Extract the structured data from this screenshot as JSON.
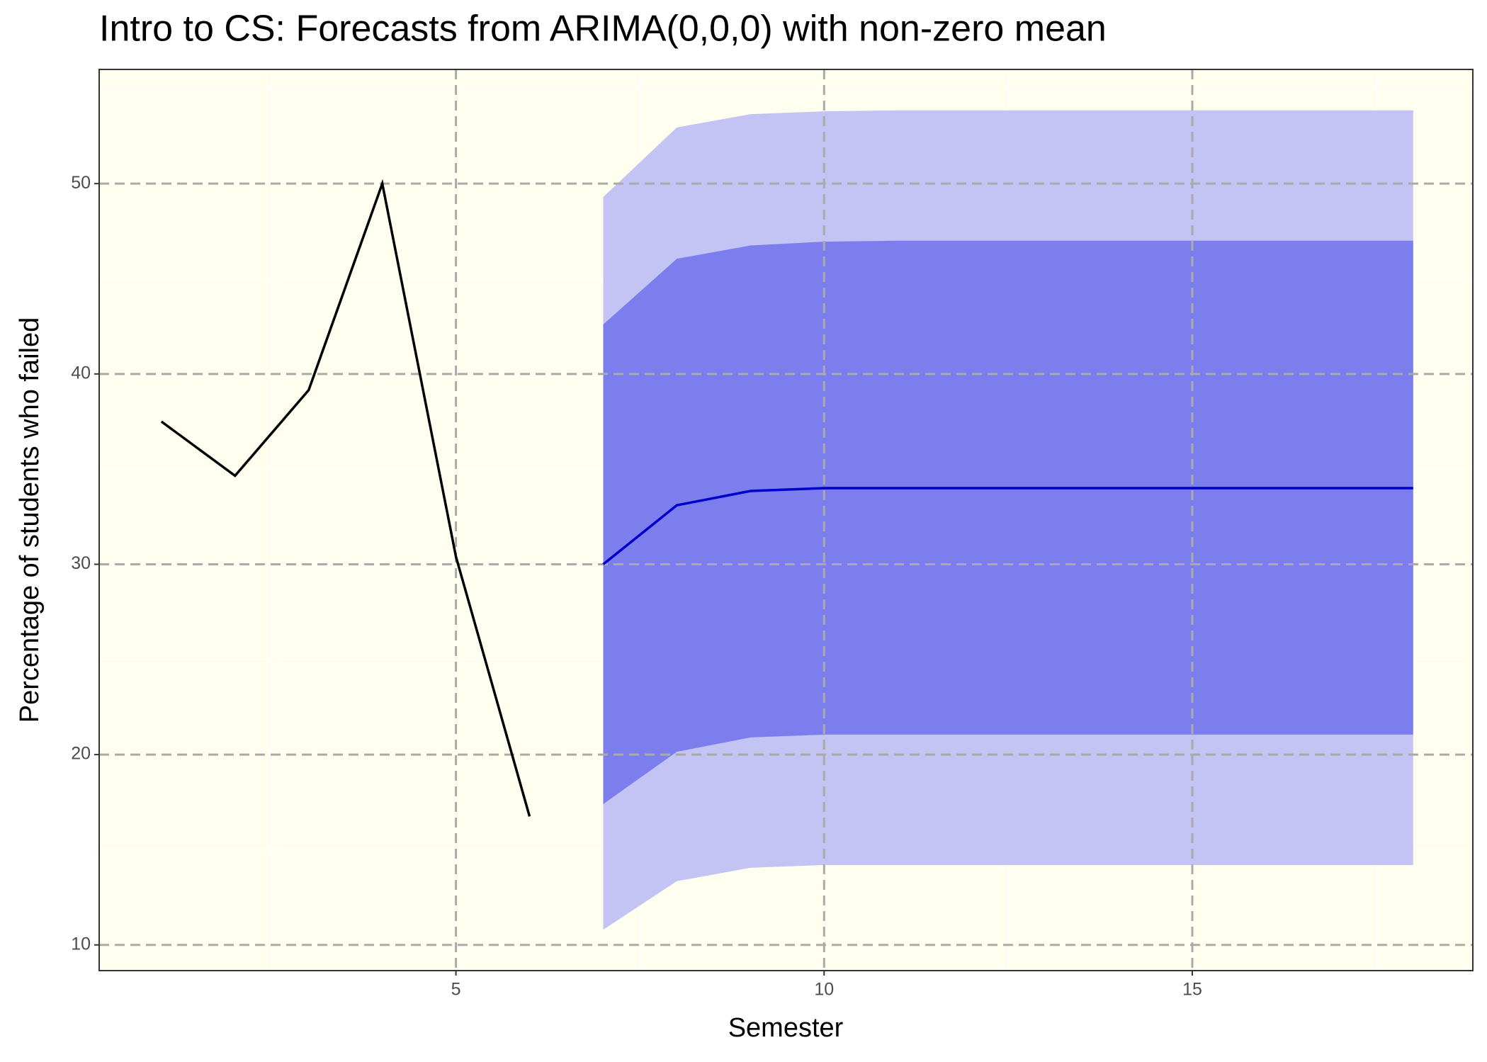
{
  "chart_data": {
    "type": "forecast",
    "title": "Intro to CS: Forecasts from ARIMA(0,0,0) with non-zero mean",
    "x_label": "Semester",
    "y_label": "Percentage of students who failed",
    "x": [
      1,
      2,
      3,
      4,
      5,
      6
    ],
    "values": [
      37.5,
      34.65,
      39.15,
      50,
      30.4,
      16.75
    ],
    "color": "#000000",
    "forecast": {
      "x": [
        7,
        8,
        9,
        10,
        11,
        12,
        13,
        14,
        15,
        16,
        17,
        18
      ],
      "mean": [
        30.0,
        33.1,
        33.85,
        34.0,
        34.0,
        34.0,
        34.0,
        34.0,
        34.0,
        34.0,
        34.0,
        34.0
      ],
      "lo80": [
        17.4,
        20.15,
        20.9,
        21.05,
        21.05,
        21.05,
        21.05,
        21.05,
        21.05,
        21.05,
        21.05,
        21.05
      ],
      "hi80": [
        42.6,
        46.05,
        46.75,
        46.95,
        47.0,
        47.0,
        47.0,
        47.0,
        47.0,
        47.0,
        47.0,
        47.0
      ],
      "lo95": [
        10.8,
        13.35,
        14.05,
        14.2,
        14.2,
        14.2,
        14.2,
        14.2,
        14.2,
        14.2,
        14.2,
        14.2
      ],
      "hi95": [
        49.3,
        52.95,
        53.65,
        53.8,
        53.85,
        53.85,
        53.85,
        53.85,
        53.85,
        53.85,
        53.85,
        53.85
      ],
      "mean_color": "#0000cc",
      "band80_color": "#7d7eed",
      "band95_color": "#c3c3f4"
    },
    "xlim": [
      0.155,
      18.81
    ],
    "ylim": [
      8.65,
      56
    ],
    "xticks": [
      5,
      10,
      15
    ],
    "yticks": [
      10,
      20,
      30,
      40,
      50
    ],
    "minor_xticks": [
      2.5,
      7.5,
      12.5,
      17.5
    ],
    "minor_yticks": [
      15,
      25,
      35,
      45,
      55
    ],
    "grid": true,
    "panel_color": "#fffff0"
  }
}
